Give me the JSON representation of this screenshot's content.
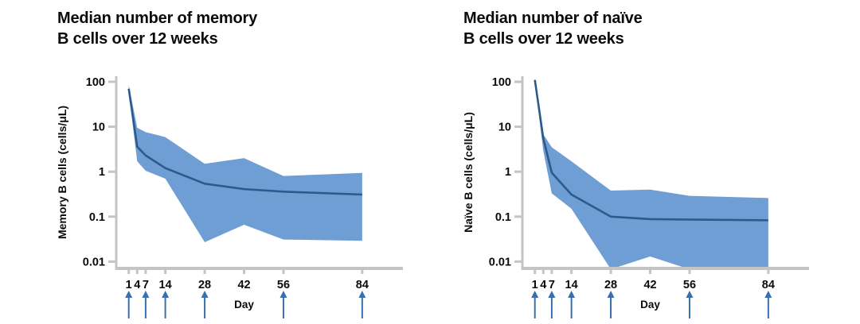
{
  "page": {
    "background": "#ffffff"
  },
  "colors": {
    "band": "#6f9ed4",
    "median_line": "#2d5a8d",
    "arrow": "#3a6fae",
    "axis": "#c4c4c4",
    "text": "#0b0b0b"
  },
  "chart_data": [
    {
      "type": "line",
      "yscale": "log",
      "title_lines": [
        "Median number of memory",
        "B cells over 12 weeks"
      ],
      "title": "Median number of memory B cells over 12 weeks",
      "ylabel": "Memory B cells (cells/μL)",
      "xlabel": "Day",
      "y_ticks": [
        "100",
        "10",
        "1",
        "0.1",
        "0.01"
      ],
      "ylim": [
        0.01,
        100
      ],
      "x_days": [
        1,
        4,
        7,
        14,
        28,
        42,
        56,
        84
      ],
      "arrow_days": [
        1,
        7,
        14,
        28,
        56,
        84
      ],
      "series": [
        {
          "name": "median",
          "values": [
            70,
            3.6,
            2.3,
            1.2,
            0.54,
            0.41,
            0.36,
            0.31
          ]
        },
        {
          "name": "upper_band",
          "values": [
            85,
            9.5,
            7.6,
            5.9,
            1.5,
            2.0,
            0.8,
            0.94
          ]
        },
        {
          "name": "lower_band",
          "values": [
            58,
            1.7,
            1.05,
            0.7,
            0.027,
            0.066,
            0.031,
            0.029
          ]
        }
      ],
      "legend": "none",
      "grid": "off"
    },
    {
      "type": "line",
      "yscale": "log",
      "title_lines": [
        "Median number of naïve",
        "B cells over 12 weeks"
      ],
      "title": "Median number of naïve B cells over 12 weeks",
      "ylabel": "Naïve B cells (cells/μL)",
      "xlabel": "Day",
      "y_ticks": [
        "100",
        "10",
        "1",
        "0.1",
        "0.01"
      ],
      "ylim": [
        0.01,
        100
      ],
      "x_days": [
        1,
        4,
        7,
        14,
        28,
        42,
        56,
        84
      ],
      "arrow_days": [
        1,
        7,
        14,
        28,
        56,
        84
      ],
      "series": [
        {
          "name": "median",
          "values": [
            110,
            5.5,
            0.95,
            0.31,
            0.1,
            0.088,
            0.086,
            0.083
          ]
        },
        {
          "name": "upper_band",
          "values": [
            120,
            6.8,
            3.5,
            1.7,
            0.38,
            0.4,
            0.29,
            0.26
          ]
        },
        {
          "name": "lower_band",
          "values": [
            95,
            2.9,
            0.33,
            0.15,
            0.005,
            0.013,
            0.005,
            0.005
          ]
        }
      ],
      "legend": "none",
      "grid": "off"
    }
  ]
}
